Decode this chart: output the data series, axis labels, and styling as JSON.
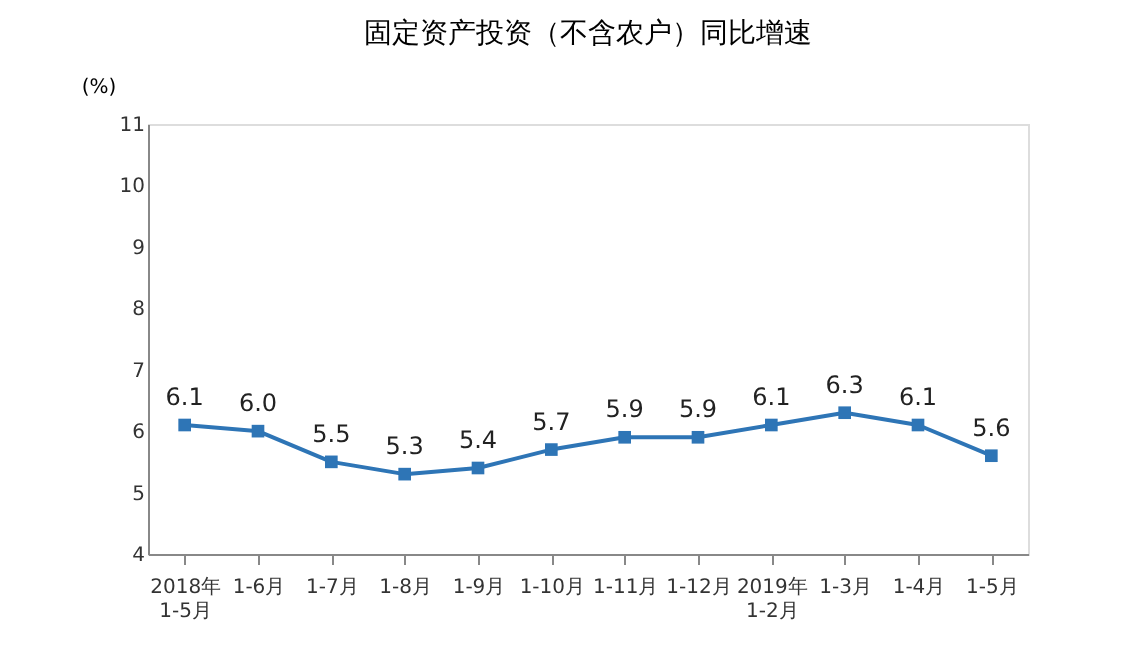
{
  "chart_data": {
    "type": "line",
    "title": "固定资产投资（不含农户）同比增速",
    "ylabel": "(%)",
    "categories": [
      "2018年\n1-5月",
      "1-6月",
      "1-7月",
      "1-8月",
      "1-9月",
      "1-10月",
      "1-11月",
      "1-12月",
      "2019年\n1-2月",
      "1-3月",
      "1-4月",
      "1-5月"
    ],
    "series": [
      {
        "color": "#2e75b6",
        "values": [
          6.1,
          6.0,
          5.5,
          5.3,
          5.4,
          5.7,
          5.9,
          5.9,
          6.1,
          6.3,
          6.1,
          5.6
        ]
      }
    ],
    "ylim": [
      4,
      11
    ],
    "yticks": [
      4,
      5,
      6,
      7,
      8,
      9,
      10,
      11
    ],
    "marker": "square",
    "line_style": "solid",
    "grid": false,
    "value_labels": [
      "6.1",
      "6.0",
      "5.5",
      "5.3",
      "5.4",
      "5.7",
      "5.9",
      "5.9",
      "6.1",
      "6.3",
      "6.1",
      "5.6"
    ]
  }
}
